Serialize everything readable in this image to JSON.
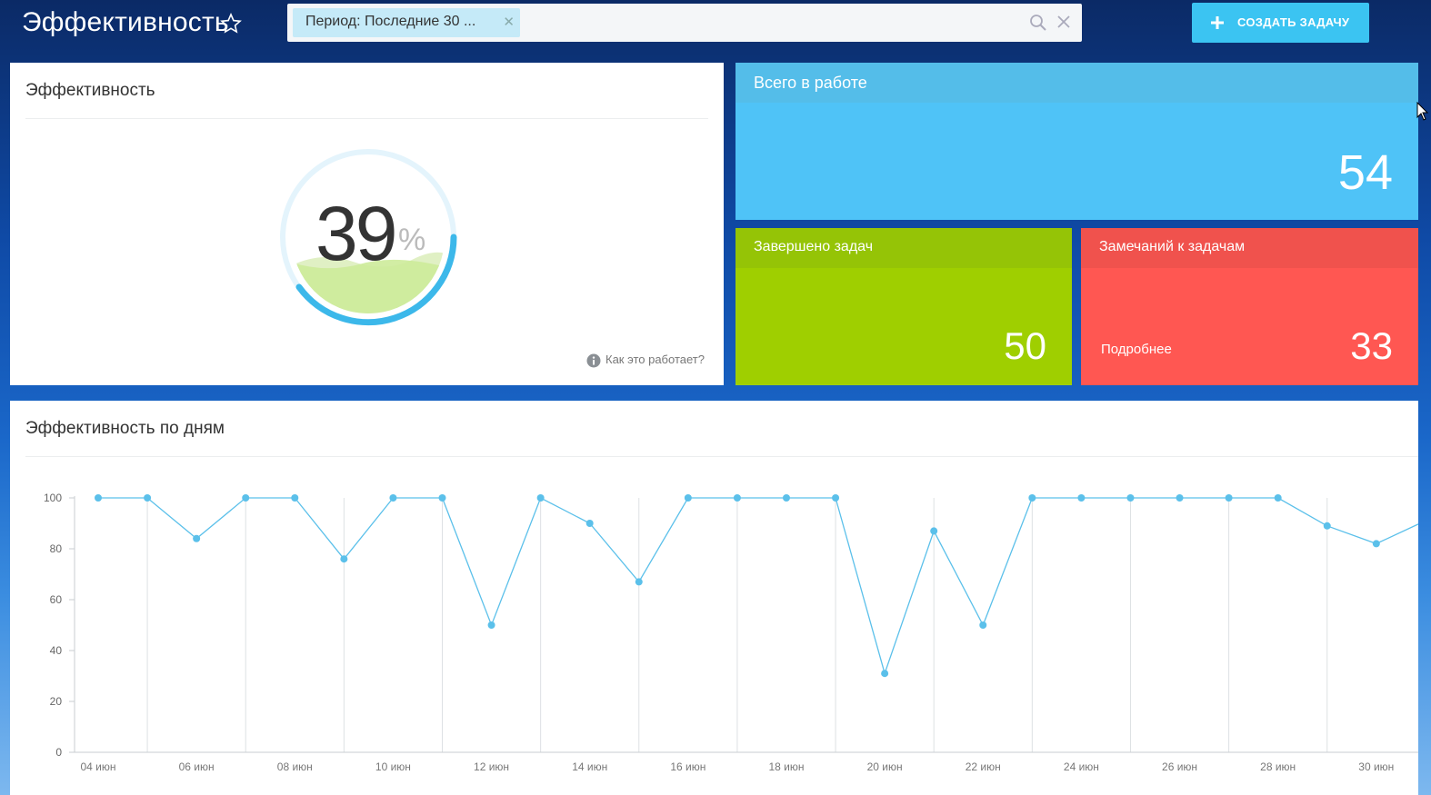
{
  "header": {
    "title": "Эффективность",
    "filter_chip": "Период: Последние 30 ...",
    "create_button": "СОЗДАТЬ ЗАДАЧУ"
  },
  "efficiency_card": {
    "title": "Эффективность",
    "value": "39",
    "unit": "%",
    "help_link": "Как это работает?"
  },
  "tiles": {
    "in_work": {
      "title": "Всего в работе",
      "value": "54"
    },
    "completed": {
      "title": "Завершено задач",
      "value": "50"
    },
    "remarks": {
      "title": "Замечаний к задачам",
      "value": "33",
      "link": "Подробнее"
    }
  },
  "colors": {
    "accent": "#4fc3f7",
    "green": "#9fcf00",
    "red": "#ff5752",
    "line": "#5bc0ea"
  },
  "chart_data": {
    "type": "line",
    "title": "Эффективность по дням",
    "ylim": [
      0,
      100
    ],
    "yticks": [
      0,
      20,
      40,
      60,
      80,
      100
    ],
    "x": [
      "04 июн",
      "05 июн",
      "06 июн",
      "07 июн",
      "08 июн",
      "09 июн",
      "10 июн",
      "11 июн",
      "12 июн",
      "13 июн",
      "14 июн",
      "15 июн",
      "16 июн",
      "17 июн",
      "18 июн",
      "19 июн",
      "20 июн",
      "21 июн",
      "22 июн",
      "23 июн",
      "24 июн",
      "25 июн",
      "26 июн",
      "27 июн",
      "28 июн",
      "29 июн",
      "30 июн",
      "01 июл"
    ],
    "xtick_labels": [
      "04 июн",
      "06 июн",
      "08 июн",
      "10 июн",
      "12 июн",
      "14 июн",
      "16 июн",
      "18 июн",
      "20 июн",
      "22 июн",
      "24 июн",
      "26 июн",
      "28 июн",
      "30 июн"
    ],
    "series": [
      {
        "values": [
          100,
          100,
          84,
          100,
          100,
          76,
          100,
          100,
          50,
          100,
          90,
          67,
          100,
          100,
          100,
          100,
          31,
          87,
          50,
          100,
          100,
          100,
          100,
          100,
          100,
          89,
          82,
          91
        ]
      }
    ],
    "grid": true
  }
}
